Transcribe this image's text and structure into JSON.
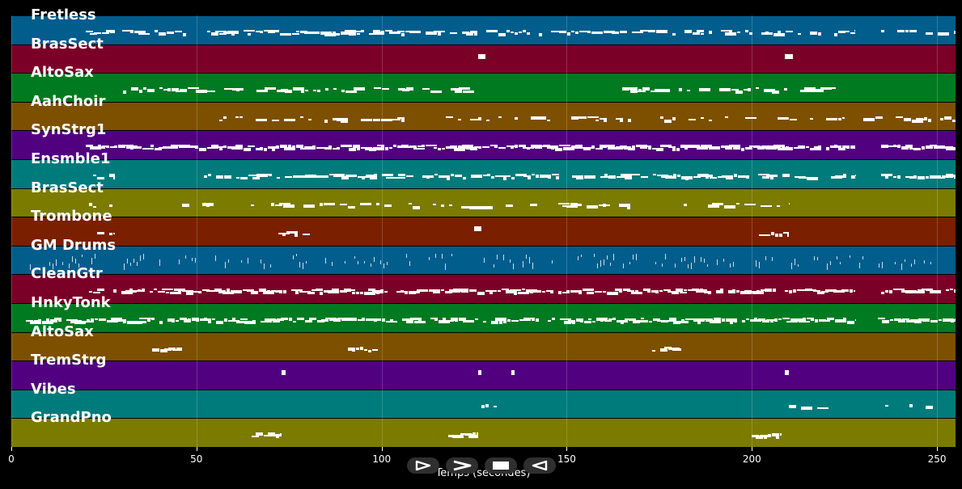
{
  "colors": {
    "background": "#000000",
    "lane_palette": [
      "#005d8c",
      "#7b0027",
      "#007a20",
      "#7d5000",
      "#510080",
      "#007b7b",
      "#7b7b00",
      "#7a2000"
    ],
    "note": "#ffffff"
  },
  "tracks": [
    {
      "name": "Fretless",
      "color": "#005d8c"
    },
    {
      "name": "BrasSect",
      "color": "#7b0027"
    },
    {
      "name": "AltoSax",
      "color": "#007a20"
    },
    {
      "name": "AahChoir",
      "color": "#7d5000"
    },
    {
      "name": "SynStrg1",
      "color": "#510080"
    },
    {
      "name": "Ensmble1",
      "color": "#007b7b"
    },
    {
      "name": "BrasSect",
      "color": "#7b7b00"
    },
    {
      "name": "Trombone",
      "color": "#7a2000"
    },
    {
      "name": "GM Drums",
      "color": "#005d8c"
    },
    {
      "name": "CleanGtr",
      "color": "#7b0027"
    },
    {
      "name": "HnkyTonk",
      "color": "#007a20"
    },
    {
      "name": "AltoSax",
      "color": "#7d5000"
    },
    {
      "name": "TremStrg",
      "color": "#510080"
    },
    {
      "name": "Vibes",
      "color": "#007b7b"
    },
    {
      "name": "GrandPno",
      "color": "#7b7b00"
    }
  ],
  "timeline": {
    "min": 0,
    "max": 255,
    "ticks": [
      0,
      50,
      100,
      150,
      200,
      250
    ],
    "tick_labels": [
      "0",
      "50",
      "100",
      "150",
      "200",
      "250"
    ],
    "xlabel": "Temps (secondes)"
  },
  "controls": [
    {
      "icon": "play-outline-icon"
    },
    {
      "icon": "fast-forward-icon"
    },
    {
      "icon": "stop-icon"
    },
    {
      "icon": "rewind-icon"
    }
  ],
  "chart_data": {
    "type": "scatter",
    "xlabel": "Temps (secondes)",
    "xlim": [
      0,
      255
    ],
    "grid": true,
    "series": [
      {
        "name": "Fretless",
        "segments": [
          [
            20,
            28
          ],
          [
            30,
            228
          ],
          [
            235,
            255
          ]
        ],
        "density": 0.6
      },
      {
        "name": "BrasSect",
        "segments": [
          [
            126,
            128
          ],
          [
            209,
            211
          ]
        ],
        "density": 1.0
      },
      {
        "name": "AltoSax",
        "segments": [
          [
            29,
            129
          ],
          [
            165,
            224
          ]
        ],
        "density": 0.5
      },
      {
        "name": "AahChoir",
        "segments": [
          [
            55,
            225
          ],
          [
            228,
            255
          ]
        ],
        "density": 0.35
      },
      {
        "name": "SynStrg1",
        "segments": [
          [
            20,
            228
          ],
          [
            235,
            255
          ]
        ],
        "density": 0.95
      },
      {
        "name": "Ensmble1",
        "segments": [
          [
            22,
            28
          ],
          [
            52,
            228
          ],
          [
            235,
            255
          ]
        ],
        "density": 0.7
      },
      {
        "name": "BrasSect",
        "segments": [
          [
            21,
            28
          ],
          [
            46,
            210
          ]
        ],
        "density": 0.3
      },
      {
        "name": "Trombone",
        "segments": [
          [
            21,
            28
          ],
          [
            70,
            82
          ],
          [
            125,
            127
          ],
          [
            202,
            210
          ]
        ],
        "density": 0.4
      },
      {
        "name": "GM Drums",
        "segments": [
          [
            5,
            50
          ],
          [
            55,
            250
          ]
        ],
        "density": 0.45
      },
      {
        "name": "CleanGtr",
        "segments": [
          [
            21,
            228
          ],
          [
            235,
            255
          ]
        ],
        "density": 0.85
      },
      {
        "name": "HnkyTonk",
        "segments": [
          [
            4,
            228
          ],
          [
            234,
            255
          ]
        ],
        "density": 0.85
      },
      {
        "name": "AltoSax",
        "segments": [
          [
            38,
            46
          ],
          [
            91,
            99
          ],
          [
            173,
            181
          ]
        ],
        "density": 0.9
      },
      {
        "name": "TremStrg",
        "segments": [
          [
            73,
            74
          ],
          [
            126,
            127
          ],
          [
            135,
            136
          ],
          [
            209,
            210
          ]
        ],
        "density": 1.0
      },
      {
        "name": "Vibes",
        "segments": [
          [
            127,
            135
          ],
          [
            210,
            226
          ],
          [
            235,
            250
          ]
        ],
        "density": 0.4
      },
      {
        "name": "GrandPno",
        "segments": [
          [
            65,
            73
          ],
          [
            118,
            126
          ],
          [
            200,
            208
          ]
        ],
        "density": 0.9
      }
    ]
  }
}
